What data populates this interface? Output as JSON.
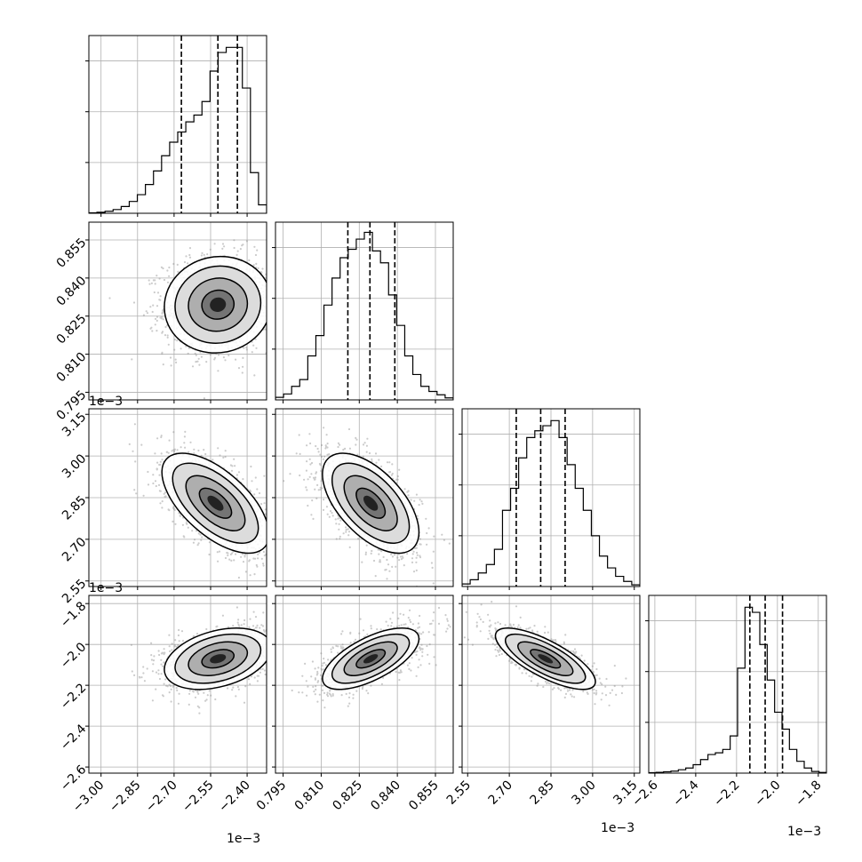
{
  "chart_data": {
    "type": "corner",
    "n_params": 4,
    "params": [
      {
        "range": [
          -3.05,
          -2.32
        ],
        "ticks": [
          -3.0,
          -2.85,
          -2.7,
          -2.55,
          -2.4
        ],
        "tick_labels": [
          "−3.00",
          "−2.85",
          "−2.70",
          "−2.55",
          "−2.40"
        ],
        "offset_label": "1e−3",
        "quantiles": [
          -2.67,
          -2.52,
          -2.44
        ]
      },
      {
        "range": [
          0.792,
          0.862
        ],
        "ticks": [
          0.795,
          0.81,
          0.825,
          0.84,
          0.855
        ],
        "tick_labels": [
          "0.795",
          "0.810",
          "0.825",
          "0.840",
          "0.855"
        ],
        "offset_label": "",
        "quantiles": [
          0.8205,
          0.8292,
          0.839
        ]
      },
      {
        "range": [
          2.53,
          3.17
        ],
        "ticks": [
          2.55,
          2.7,
          2.85,
          3.0,
          3.15
        ],
        "tick_labels": [
          "2.55",
          "2.70",
          "2.85",
          "3.00",
          "3.15"
        ],
        "offset_label": "1e−3",
        "quantiles": [
          2.725,
          2.813,
          2.901
        ]
      },
      {
        "range": [
          -2.63,
          -1.76
        ],
        "ticks": [
          -2.6,
          -2.4,
          -2.2,
          -2.0,
          -1.8
        ],
        "tick_labels": [
          "−2.6",
          "−2.4",
          "−2.2",
          "−2.0",
          "−1.8"
        ],
        "offset_label": "1e−3",
        "quantiles": [
          -2.135,
          -2.06,
          -1.975
        ]
      }
    ],
    "histograms": [
      [
        0.003,
        0.006,
        0.012,
        0.022,
        0.04,
        0.07,
        0.11,
        0.17,
        0.25,
        0.34,
        0.42,
        0.48,
        0.54,
        0.58,
        0.66,
        0.84,
        0.95,
        0.98,
        0.98,
        0.74,
        0.24,
        0.05
      ],
      [
        0.015,
        0.035,
        0.08,
        0.12,
        0.26,
        0.38,
        0.56,
        0.72,
        0.84,
        0.89,
        0.95,
        0.99,
        0.88,
        0.81,
        0.62,
        0.44,
        0.26,
        0.15,
        0.08,
        0.05,
        0.03,
        0.012
      ],
      [
        0.015,
        0.04,
        0.08,
        0.13,
        0.22,
        0.45,
        0.58,
        0.76,
        0.88,
        0.92,
        0.95,
        0.98,
        0.88,
        0.72,
        0.58,
        0.45,
        0.3,
        0.18,
        0.11,
        0.06,
        0.03,
        0.01
      ],
      [
        0.003,
        0.005,
        0.008,
        0.012,
        0.02,
        0.03,
        0.05,
        0.08,
        0.11,
        0.12,
        0.14,
        0.22,
        0.62,
        0.98,
        0.95,
        0.76,
        0.55,
        0.36,
        0.26,
        0.14,
        0.07,
        0.03,
        0.01,
        0.004
      ]
    ],
    "pairs": [
      {
        "row": 1,
        "col": 0,
        "mean": [
          -2.52,
          0.8295
        ],
        "sd": [
          0.11,
          0.0095
        ],
        "rho": 0.05
      },
      {
        "row": 2,
        "col": 0,
        "mean": [
          -2.53,
          2.83
        ],
        "sd": [
          0.11,
          0.09
        ],
        "rho": -0.62
      },
      {
        "row": 2,
        "col": 1,
        "mean": [
          0.8295,
          2.83
        ],
        "sd": [
          0.0095,
          0.09
        ],
        "rho": -0.58
      },
      {
        "row": 3,
        "col": 0,
        "mean": [
          -2.52,
          -2.07
        ],
        "sd": [
          0.11,
          0.075
        ],
        "rho": 0.35
      },
      {
        "row": 3,
        "col": 1,
        "mean": [
          0.8295,
          -2.07
        ],
        "sd": [
          0.0095,
          0.075
        ],
        "rho": 0.65
      },
      {
        "row": 3,
        "col": 2,
        "mean": [
          2.83,
          -2.07
        ],
        "sd": [
          0.09,
          0.075
        ],
        "rho": -0.75
      }
    ],
    "grid": true
  }
}
